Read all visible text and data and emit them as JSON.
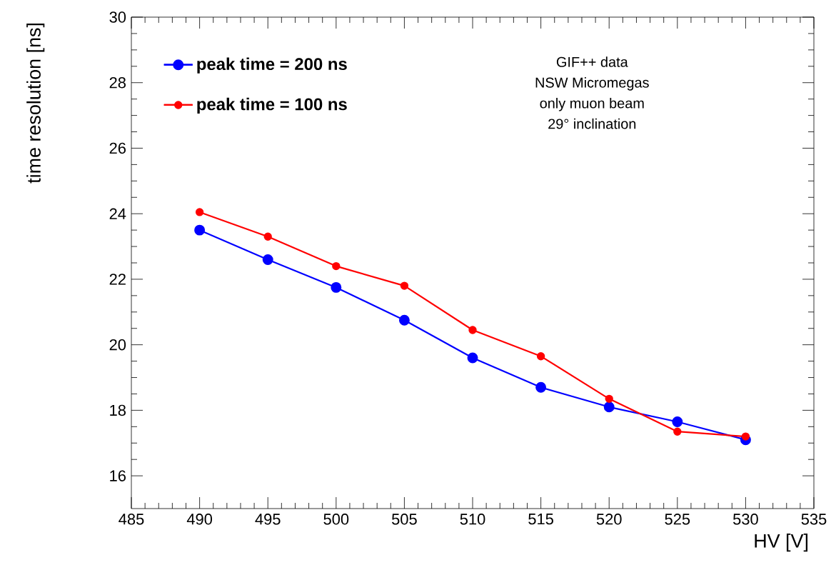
{
  "chart_data": {
    "type": "line",
    "xlabel": "HV [V]",
    "ylabel": "time resolution [ns]",
    "x": [
      490,
      495,
      500,
      505,
      510,
      515,
      520,
      525,
      530
    ],
    "series": [
      {
        "name": "peak time = 200 ns",
        "color": "#0000ff",
        "values": [
          23.5,
          22.6,
          21.75,
          20.75,
          19.6,
          18.7,
          18.1,
          17.65,
          17.1
        ],
        "errors": [
          0.15,
          0.15,
          0.15,
          0.15,
          0.15,
          0.15,
          0.15,
          0.15,
          0.15
        ]
      },
      {
        "name": "peak time = 100 ns",
        "color": "#ff0000",
        "values": [
          24.05,
          23.3,
          22.4,
          21.8,
          20.45,
          19.65,
          18.35,
          17.35,
          17.2
        ]
      }
    ],
    "xlim": [
      485,
      535
    ],
    "xticks": [
      485,
      490,
      495,
      500,
      505,
      510,
      515,
      520,
      525,
      530,
      535
    ],
    "ylim": [
      15,
      30
    ],
    "yticks": [
      16,
      18,
      20,
      22,
      24,
      26,
      28,
      30
    ],
    "legend": "top left",
    "marker": "circle",
    "line_style": "solid",
    "annotations": [
      "GIF++ data",
      "NSW Micromegas",
      "only muon beam",
      "29° inclination"
    ]
  }
}
